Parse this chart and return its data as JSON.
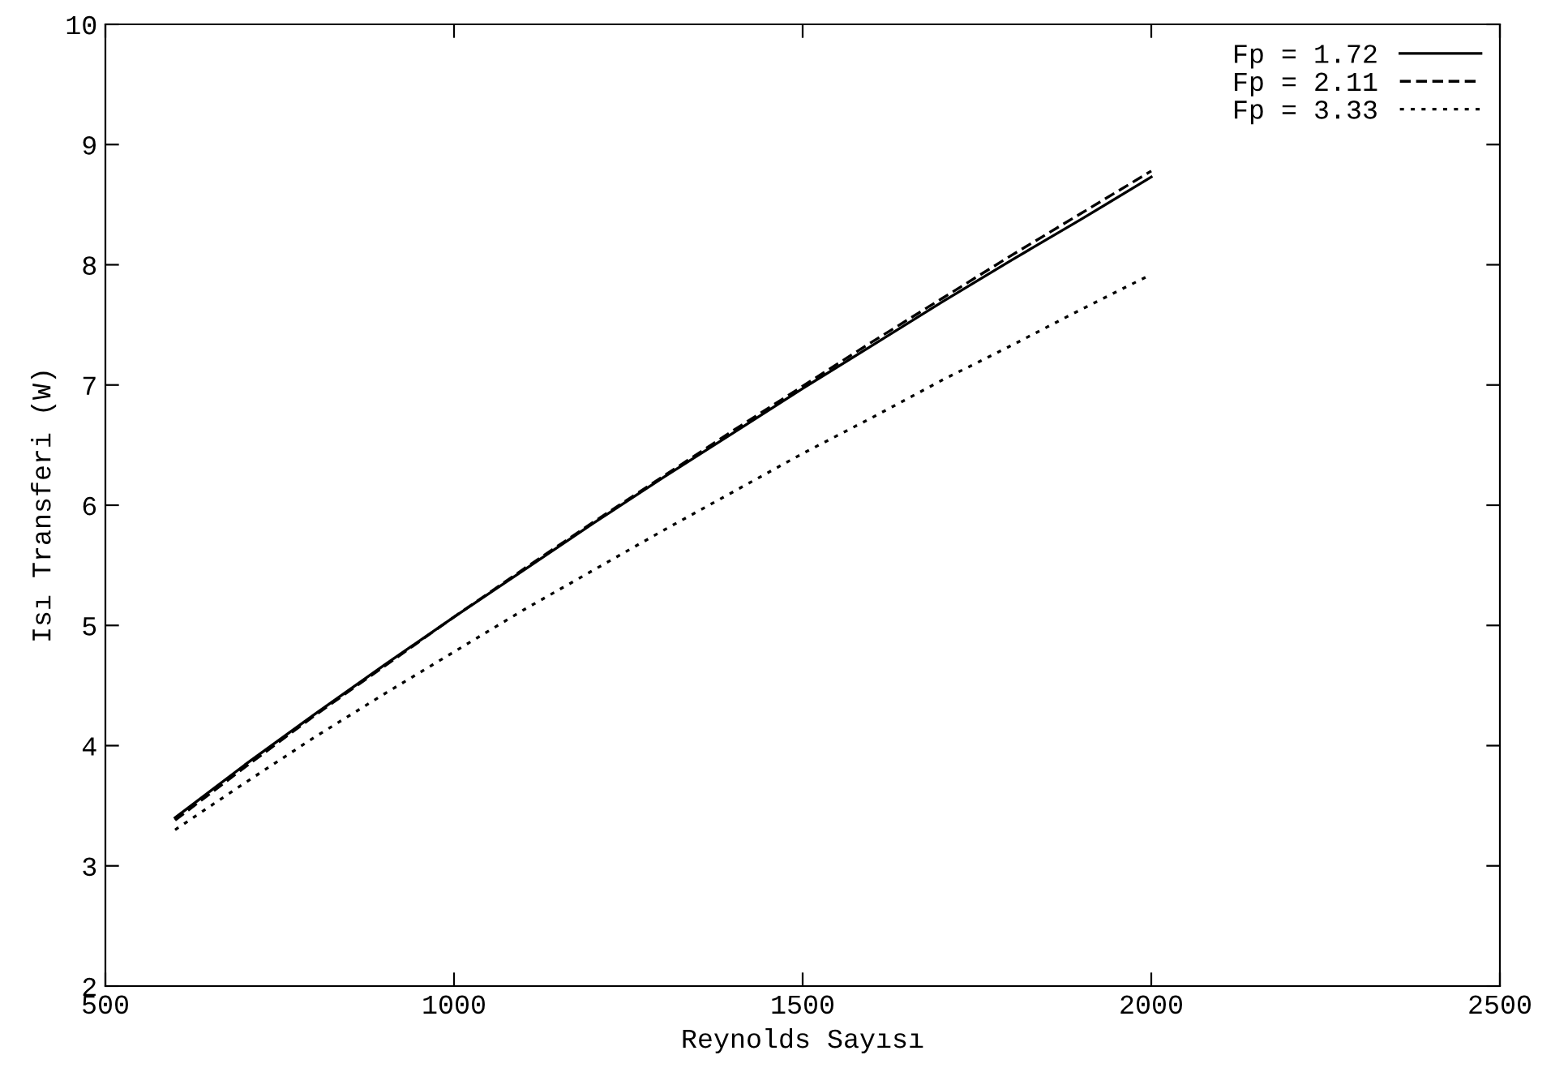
{
  "chart_data": {
    "type": "line",
    "xlabel": "Reynolds Sayısı",
    "ylabel": "Isı Transferi (W)",
    "xlim": [
      500,
      2500
    ],
    "ylim": [
      2,
      10
    ],
    "xticks": [
      500,
      1000,
      1500,
      2000,
      2500
    ],
    "yticks": [
      2,
      3,
      4,
      5,
      6,
      7,
      8,
      9,
      10
    ],
    "grid": false,
    "legend": "top right",
    "marker": "none",
    "x": [
      600,
      700,
      800,
      900,
      1000,
      1100,
      1200,
      1300,
      1400,
      1500,
      1600,
      1700,
      1800,
      1900,
      2000
    ],
    "series": [
      {
        "name": "Fp = 1.72",
        "color": "#000000",
        "line_style": "solid",
        "values": [
          3.4,
          3.84,
          4.26,
          4.67,
          5.07,
          5.46,
          5.85,
          6.23,
          6.6,
          6.97,
          7.33,
          7.69,
          8.04,
          8.38,
          8.73
        ]
      },
      {
        "name": "Fp = 2.11",
        "color": "#000000",
        "line_style": "dashed",
        "values": [
          3.38,
          3.82,
          4.25,
          4.66,
          5.07,
          5.47,
          5.86,
          6.24,
          6.62,
          6.99,
          7.36,
          7.72,
          8.08,
          8.43,
          8.78
        ]
      },
      {
        "name": "Fp = 3.33",
        "color": "#000000",
        "line_style": "dotted",
        "values": [
          3.3,
          3.69,
          4.07,
          4.43,
          4.78,
          5.13,
          5.46,
          5.79,
          6.11,
          6.43,
          6.73,
          7.04,
          7.33,
          7.63,
          7.92
        ]
      }
    ]
  }
}
